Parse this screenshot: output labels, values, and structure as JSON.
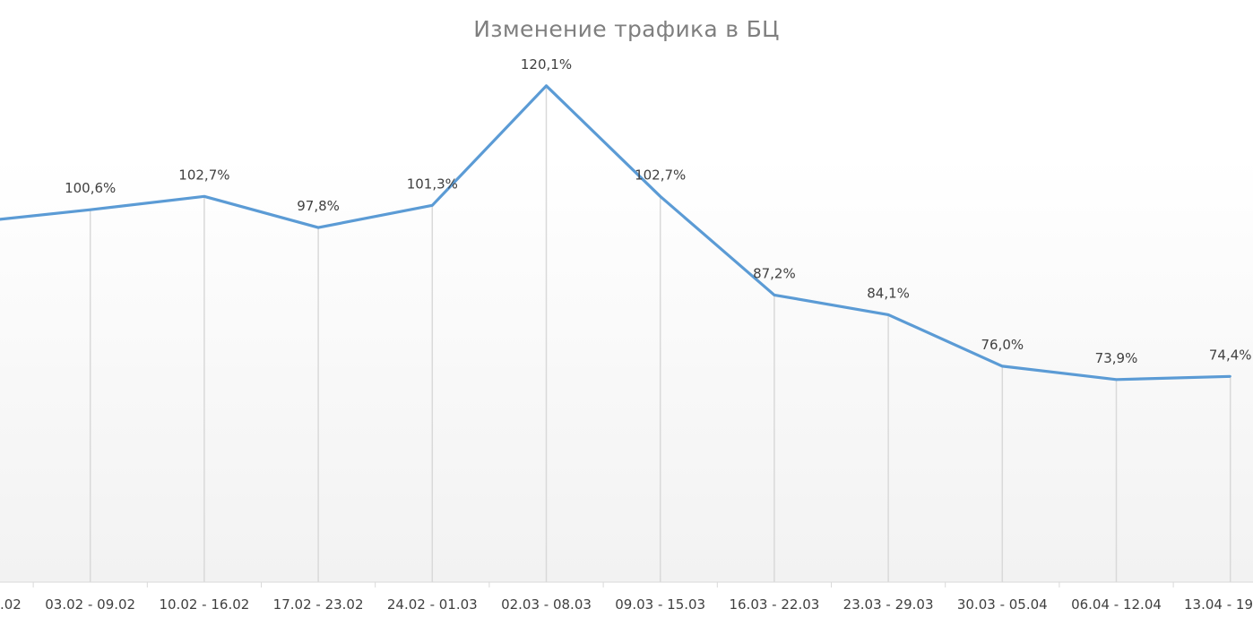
{
  "chart_data": {
    "type": "line",
    "title": "Изменение трафика в БЦ",
    "xlabel": "",
    "ylabel": "",
    "categories": [
      ".02",
      "03.02 - 09.02",
      "10.02 - 16.02",
      "17.02 - 23.02",
      "24.02 - 01.03",
      "02.03 - 08.03",
      "09.03 - 15.03",
      "16.03 - 22.03",
      "23.03 - 29.03",
      "30.03 - 05.04",
      "06.04 - 12.04",
      "13.04 - 19"
    ],
    "series": [
      {
        "values": [
          98.7,
          100.6,
          102.7,
          97.8,
          101.3,
          120.1,
          102.7,
          87.2,
          84.1,
          76.0,
          73.9,
          74.4
        ],
        "labels": [
          "",
          "100,6%",
          "102,7%",
          "97,8%",
          "101,3%",
          "120,1%",
          "102,7%",
          "87,2%",
          "84,1%",
          "76,0%",
          "73,9%",
          "74,4%"
        ],
        "color": "#5b9bd5"
      }
    ],
    "vertical_gridlines": true,
    "legend": "none",
    "background_gradient": [
      "#ffffff",
      "#f2f2f2"
    ]
  }
}
